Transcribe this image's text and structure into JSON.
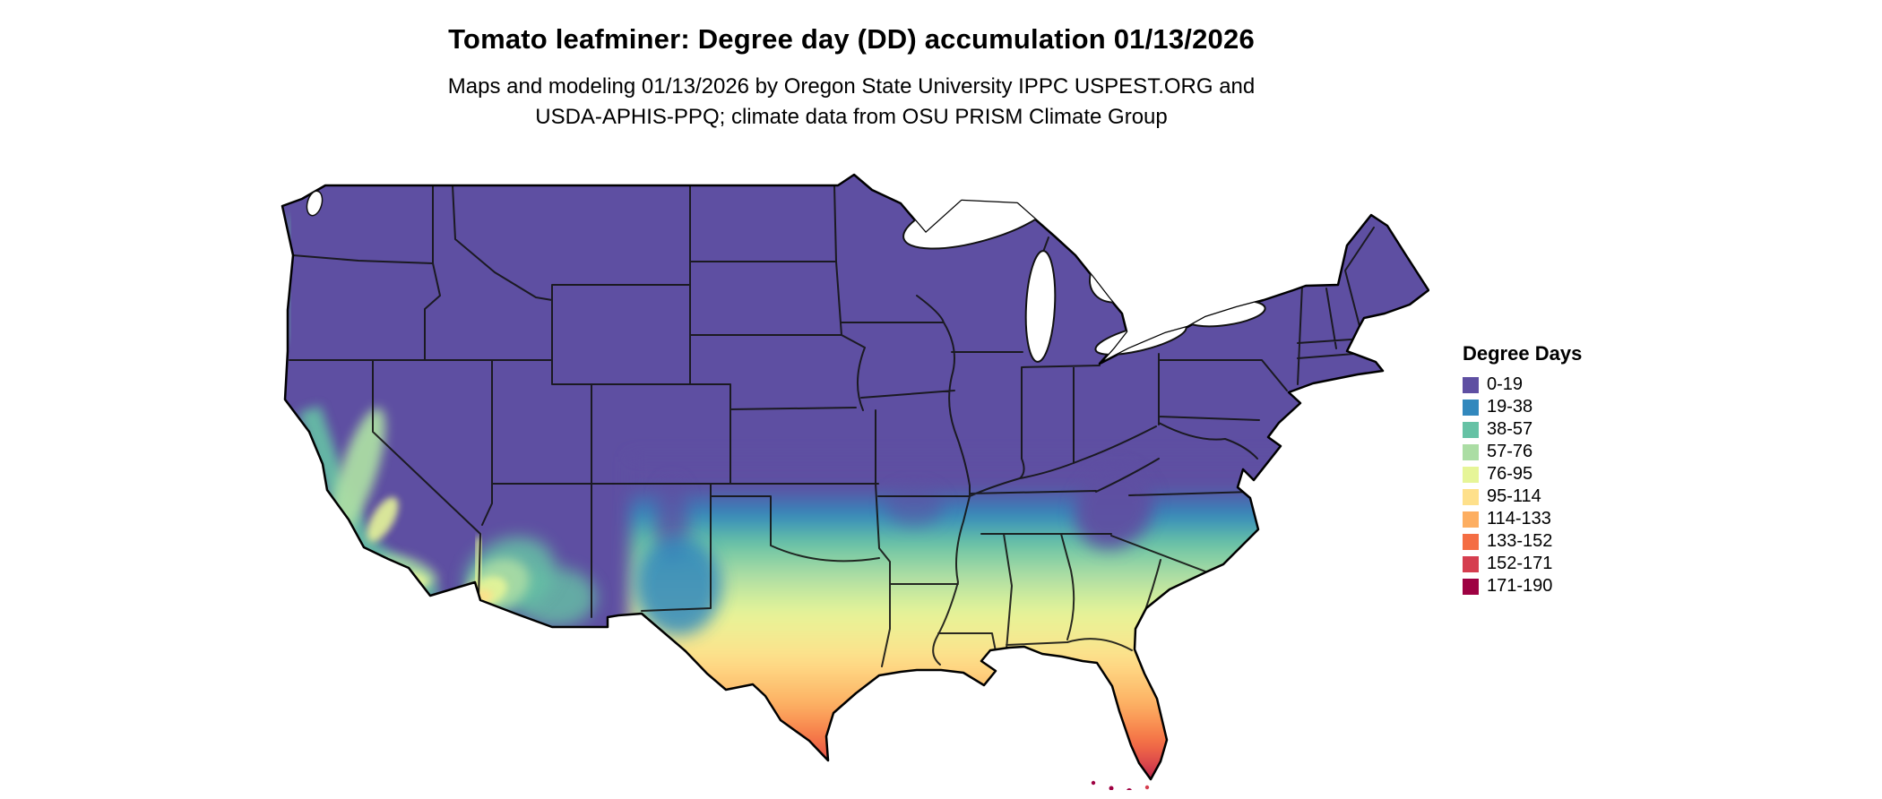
{
  "header": {
    "title": "Tomato leafminer: Degree day (DD) accumulation 01/13/2026",
    "subtitle_line1": "Maps and modeling 01/13/2026 by Oregon State University IPPC USPEST.ORG and",
    "subtitle_line2": "USDA-APHIS-PPQ; climate data from OSU PRISM Climate Group"
  },
  "map": {
    "region": "Conterminous United States",
    "base_color": "#5e4fa2",
    "outline_color": "#000000"
  },
  "legend": {
    "title": "Degree Days",
    "items": [
      {
        "label": "0-19",
        "color": "#5e4fa2"
      },
      {
        "label": "19-38",
        "color": "#3288bd"
      },
      {
        "label": "38-57",
        "color": "#66c2a5"
      },
      {
        "label": "57-76",
        "color": "#abdda4"
      },
      {
        "label": "76-95",
        "color": "#e6f598"
      },
      {
        "label": "95-114",
        "color": "#fee08b"
      },
      {
        "label": "114-133",
        "color": "#fdae61"
      },
      {
        "label": "133-152",
        "color": "#f46d43"
      },
      {
        "label": "152-171",
        "color": "#d53e4f"
      },
      {
        "label": "171-190",
        "color": "#9e0142"
      }
    ]
  }
}
